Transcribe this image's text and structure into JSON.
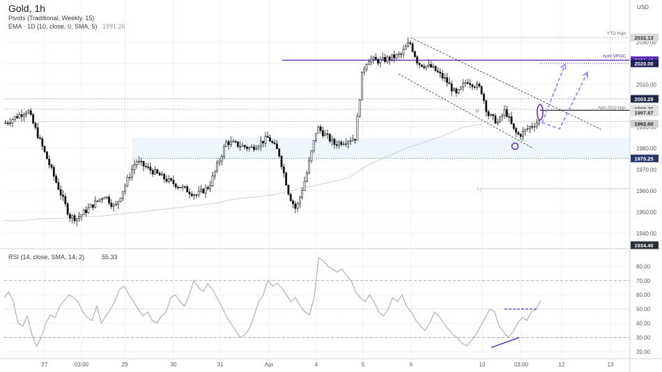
{
  "header": {
    "title": "Gold, 1h",
    "line1": "Pivots (Traditional, Weekly, 15)",
    "line2": "EMA · 1D (10, close, 0, SMA, 5)",
    "line2_value": "1991.26"
  },
  "currency": "USD",
  "rsi_header": {
    "label": "RSI (14, close, SMA, 14, 2)",
    "value": "55.33"
  },
  "colors": {
    "candle": "#111111",
    "grid": "#f2f2f2",
    "ema": "#d6d6d6",
    "rsi": "#b4b4b4",
    "purple": "#5b2eb8",
    "purple_dash": "#a98fe6",
    "zone": "#eef6fd",
    "level_dotted": "#8a8a8a",
    "tag_dark": "#2a2e39"
  },
  "chart_data": [
    {
      "type": "candlestick",
      "ylim": [
        1934.4,
        2038
      ],
      "y_ticks": [
        "2030.00",
        "2020.00",
        "2010.00",
        "1990.00",
        "1980.00",
        "1970.00",
        "1960.00",
        "1950.00",
        "1940.00"
      ],
      "x_ticks": [
        "27",
        "03:00",
        "29",
        "30",
        "31",
        "Apr",
        "4",
        "5",
        "6",
        "10",
        "03:00",
        "12",
        "13"
      ],
      "ema_1d": [
        1946,
        1946,
        1947,
        1947,
        1948,
        1948,
        1949,
        1950,
        1951,
        1952,
        1953,
        1954,
        1956,
        1957,
        1958,
        1960,
        1962,
        1964,
        1966,
        1972,
        1976,
        1980,
        1983,
        1986,
        1990,
        1991.3
      ],
      "levels": [
        {
          "name": "YTD high",
          "value": 2032.13,
          "label": "YTD high",
          "tag": "2032.13"
        },
        {
          "name": "April VPOC",
          "value": 2021.46,
          "label": "April VPOC",
          "tag": "2021.46"
        },
        {
          "name": "2020.00",
          "value": 2020.0,
          "tag": "2020.00"
        },
        {
          "name": "2003.28",
          "value": 2003.28,
          "tag": "2003.28"
        },
        {
          "name": "1998.39",
          "value": 1998.39,
          "tag": "1998.39"
        },
        {
          "name": "April 2023 high",
          "value": 1997.87,
          "label": "April 2023 high",
          "tag": "1997.87"
        },
        {
          "name": "1992.60",
          "value": 1992.6,
          "tag": "1992.60"
        },
        {
          "name": "1975.25",
          "value": 1975.25,
          "tag": "1975.25"
        },
        {
          "name": "S1",
          "value": 1961,
          "label": "S1"
        },
        {
          "name": "1934.40",
          "value": 1934.4,
          "tag": "1934.40"
        }
      ],
      "pivot_label": "P",
      "support_zone": [
        1975.25,
        1985
      ]
    },
    {
      "type": "line",
      "title": "RSI (14, close, SMA, 14, 2)",
      "ylim": [
        18,
        88
      ],
      "y_ticks": [
        "80.00",
        "70.00",
        "60.00",
        "50.00",
        "40.00",
        "30.00",
        "20.00"
      ],
      "bands": [
        70,
        30
      ],
      "midline": 50,
      "values": [
        58,
        62,
        55,
        40,
        38,
        45,
        32,
        24,
        30,
        40,
        46,
        44,
        52,
        56,
        60,
        58,
        55,
        48,
        44,
        42,
        52,
        40,
        45,
        50,
        56,
        64,
        66,
        60,
        55,
        50,
        45,
        48,
        42,
        40,
        45,
        48,
        58,
        60,
        55,
        52,
        60,
        70,
        65,
        62,
        68,
        64,
        58,
        52,
        45,
        40,
        35,
        30,
        32,
        36,
        45,
        55,
        60,
        70,
        66,
        68,
        65,
        60,
        55,
        58,
        52,
        48,
        46,
        58,
        86,
        84,
        80,
        78,
        76,
        78,
        74,
        70,
        62,
        58,
        55,
        60,
        55,
        48,
        45,
        50,
        58,
        55,
        60,
        52,
        48,
        42,
        38,
        35,
        40,
        48,
        45,
        40,
        36,
        32,
        30,
        26,
        24,
        28,
        32,
        38,
        44,
        50,
        48,
        38,
        34,
        30,
        34,
        40,
        44,
        42,
        48,
        50,
        56
      ]
    }
  ]
}
